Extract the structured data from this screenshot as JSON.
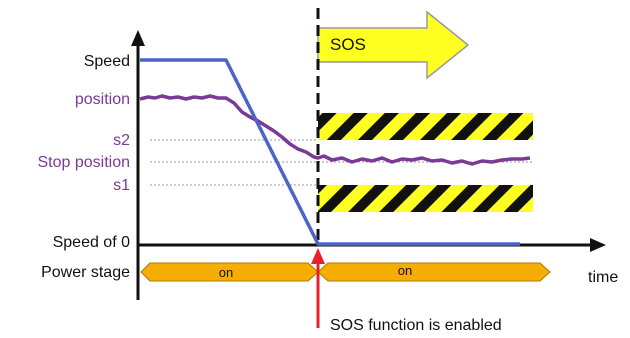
{
  "labels": {
    "speed": "Speed",
    "position": "position",
    "s2": "s2",
    "stop_position": "Stop position",
    "s1": "s1",
    "speed_of_0": "Speed of 0",
    "power_stage": "Power stage",
    "time": "time"
  },
  "sos_arrow": {
    "text": "SOS"
  },
  "power_stage_segments": [
    "on",
    "on"
  ],
  "annotation": "SOS function is enabled",
  "colors": {
    "speed_line": "#4a64c8",
    "position_line": "#7a3a96",
    "sos_arrow_fill": "#ffff22",
    "power_stage_fill": "#f4ad00",
    "event_marker": "#e8202a",
    "hatch_yellow": "#ffff22",
    "hatch_black": "#111111"
  }
}
